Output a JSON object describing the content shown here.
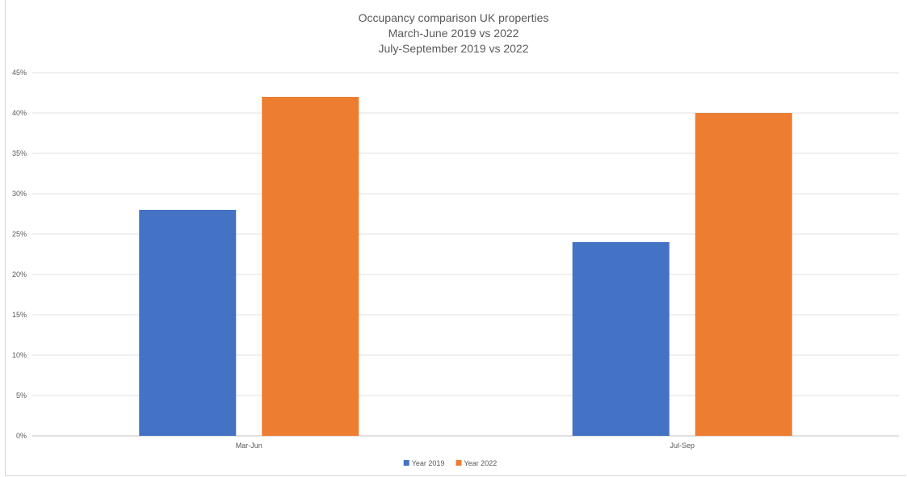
{
  "chart_data": {
    "type": "bar",
    "title_lines": [
      "Occupancy comparison UK properties",
      "March-June 2019 vs 2022",
      "July-September 2019 vs 2022"
    ],
    "categories": [
      "Mar-Jun",
      "Jul-Sep"
    ],
    "series": [
      {
        "name": "Year 2019",
        "values": [
          28,
          24
        ],
        "color": "#4472c4"
      },
      {
        "name": "Year 2022",
        "values": [
          42,
          40
        ],
        "color": "#ed7d31"
      }
    ],
    "y_ticks": [
      "0%",
      "5%",
      "10%",
      "15%",
      "20%",
      "25%",
      "30%",
      "35%",
      "40%",
      "45%"
    ],
    "ylim": [
      0,
      45
    ],
    "y_unit": "%",
    "grid": true,
    "legend_position": "bottom"
  }
}
